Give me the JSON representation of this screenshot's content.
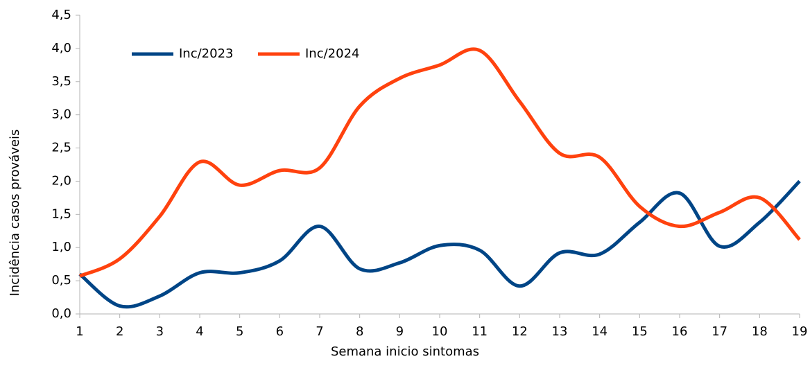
{
  "chart_data": {
    "type": "line",
    "x_label": "Semana inicio sintomas",
    "y_label": "Incidência casos prováveis",
    "x": [
      1,
      2,
      3,
      4,
      5,
      6,
      7,
      8,
      9,
      10,
      11,
      12,
      13,
      14,
      15,
      16,
      17,
      18,
      19
    ],
    "xlim": [
      1,
      19
    ],
    "xticks": [
      1,
      2,
      3,
      4,
      5,
      6,
      7,
      8,
      9,
      10,
      11,
      12,
      13,
      14,
      15,
      16,
      17,
      18,
      19
    ],
    "ylim": [
      0,
      4.5
    ],
    "yticks": [
      {
        "value": 0,
        "label": "0,0"
      },
      {
        "value": 0.5,
        "label": "0,5"
      },
      {
        "value": 1,
        "label": "1,0"
      },
      {
        "value": 1.5,
        "label": "1,5"
      },
      {
        "value": 2,
        "label": "2,0"
      },
      {
        "value": 2.5,
        "label": "2,5"
      },
      {
        "value": 3,
        "label": "3,0"
      },
      {
        "value": 3.5,
        "label": "3,5"
      },
      {
        "value": 4,
        "label": "4,0"
      },
      {
        "value": 4.5,
        "label": "4,5"
      }
    ],
    "grid": false,
    "smooth": true,
    "legend": "upper left",
    "series": [
      {
        "name": "Inc/2023",
        "color": "#004586",
        "values": [
          0.6,
          0.12,
          0.27,
          0.62,
          0.62,
          0.8,
          1.32,
          0.68,
          0.77,
          1.03,
          0.96,
          0.42,
          0.92,
          0.9,
          1.38,
          1.82,
          1.02,
          1.38,
          2.0
        ]
      },
      {
        "name": "Inc/2024",
        "color": "#ff420e",
        "values": [
          0.57,
          0.83,
          1.47,
          2.29,
          1.94,
          2.16,
          2.2,
          3.13,
          3.55,
          3.75,
          3.97,
          3.2,
          2.42,
          2.36,
          1.62,
          1.32,
          1.53,
          1.75,
          1.12
        ]
      }
    ]
  }
}
